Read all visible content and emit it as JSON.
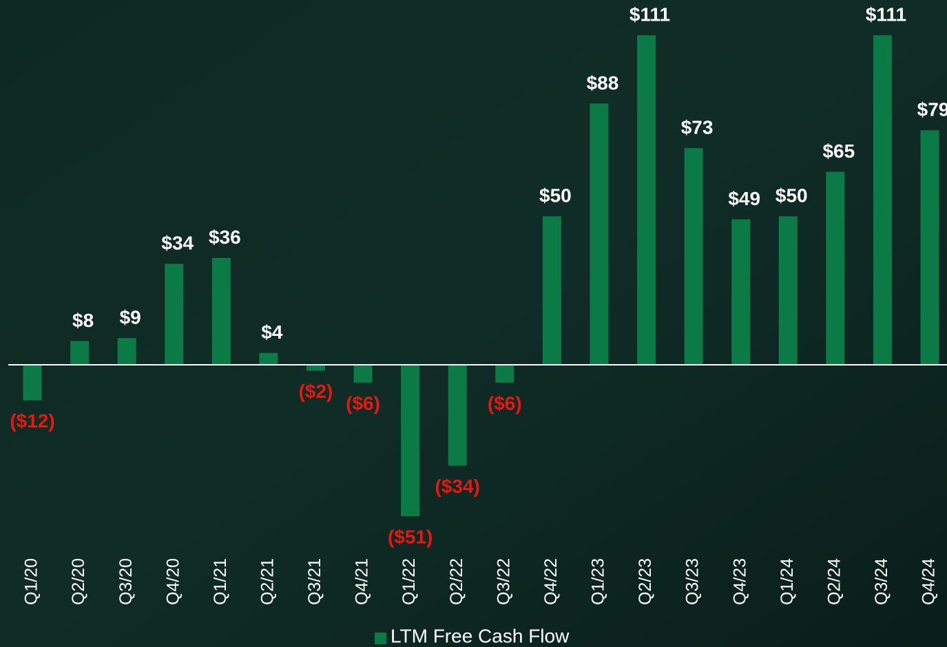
{
  "chart_data": {
    "type": "bar",
    "categories": [
      "Q1/20",
      "Q2/20",
      "Q3/20",
      "Q4/20",
      "Q1/21",
      "Q2/21",
      "Q3/21",
      "Q4/21",
      "Q1/22",
      "Q2/22",
      "Q3/22",
      "Q4/22",
      "Q1/23",
      "Q2/23",
      "Q3/23",
      "Q4/23",
      "Q1/24",
      "Q2/24",
      "Q3/24",
      "Q4/24"
    ],
    "series": [
      {
        "name": "LTM Free Cash Flow",
        "color": "#0b7a47",
        "values": [
          -12,
          8,
          9,
          34,
          36,
          4,
          -2,
          -6,
          -51,
          -34,
          -6,
          50,
          88,
          111,
          73,
          49,
          50,
          65,
          111,
          79
        ],
        "value_labels": [
          "($12)",
          "$8",
          "$9",
          "$34",
          "$36",
          "$4",
          "($2)",
          "($6)",
          "($51)",
          "($34)",
          "($6)",
          "$50",
          "$88",
          "$111",
          "$73",
          "$49",
          "$50",
          "$65",
          "$111",
          "$79"
        ]
      }
    ],
    "label_color": "#ffffff",
    "negative_label_color": "#e8170f",
    "legend": "bottom"
  }
}
